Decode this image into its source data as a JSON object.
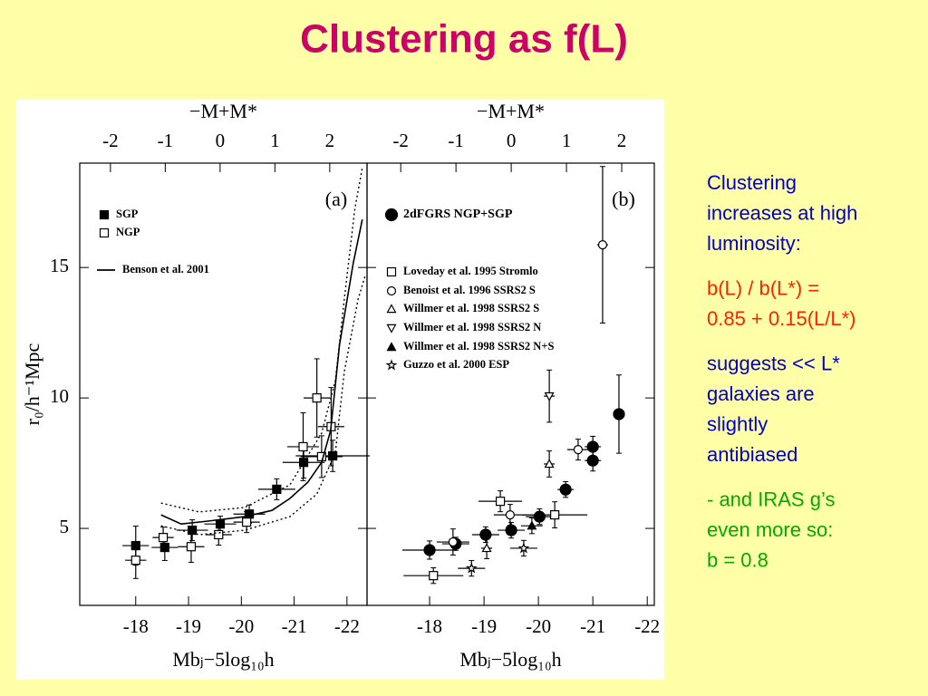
{
  "title": "Clustering as f(L)",
  "chart_data": [
    {
      "type": "scatter",
      "panel_label": "(a)",
      "xlabel": "Mbⱼ−5log₁₀h",
      "ylabel": "r₀/h⁻¹Mpc",
      "x2label": "−M+M*",
      "xlim": [
        -16.94,
        -22.38
      ],
      "xticks": [
        -18,
        -19,
        -20,
        -21,
        -22
      ],
      "x2lim": [
        -2.56,
        2.68
      ],
      "x2ticks": [
        -2,
        -1,
        0,
        1,
        2
      ],
      "ylim": [
        2.05,
        19
      ],
      "yticks": [
        5,
        10,
        15
      ],
      "ytick_labels": true,
      "legend": "upper left",
      "series": [
        {
          "name": "SGP",
          "marker": "filled-square",
          "color": "#000000",
          "x": [
            -18.0,
            -18.55,
            -19.07,
            -19.6,
            -20.15,
            -20.67,
            -21.18,
            -21.73
          ],
          "values": [
            4.34,
            4.27,
            4.93,
            5.17,
            5.55,
            6.5,
            7.53,
            7.78
          ],
          "errors": [
            0.75,
            0.5,
            0.4,
            0.3,
            0.35,
            0.4,
            0.6,
            0.6
          ],
          "xerrors": [
            0.25,
            0.25,
            0.3,
            0.3,
            0.3,
            0.35,
            0.4,
            0.7
          ]
        },
        {
          "name": "NGP",
          "marker": "open-square",
          "color": "#000000",
          "x": [
            -18.0,
            -18.52,
            -19.05,
            -19.57,
            -20.1,
            -21.17,
            -21.43,
            -21.7,
            -21.52
          ],
          "values": [
            3.78,
            4.65,
            4.3,
            4.76,
            5.24,
            8.13,
            10.0,
            8.9,
            7.75
          ],
          "errors": [
            0.7,
            0.4,
            0.6,
            0.4,
            0.4,
            1.3,
            1.5,
            1.5,
            0.8
          ],
          "xerrors": [
            0.2,
            0.2,
            0.25,
            0.25,
            0.25,
            0.3,
            0.25,
            0.25,
            0.4
          ]
        },
        {
          "name": "Benson et al. 2001",
          "style": "solid",
          "color": "#000000",
          "x": [
            -18.48,
            -18.86,
            -19.37,
            -20.06,
            -20.58,
            -20.92,
            -21.26,
            -21.52,
            -21.69,
            -21.86,
            -22.12,
            -22.29
          ],
          "values": [
            5.52,
            5.17,
            5.28,
            5.45,
            5.69,
            6.15,
            6.77,
            7.53,
            8.75,
            12.05,
            15.17,
            16.84
          ]
        },
        {
          "style": "dotted",
          "color": "#000000",
          "x": [
            -18.48,
            -19.2,
            -20.06,
            -20.92,
            -21.52,
            -21.78,
            -21.95,
            -22.15,
            -22.29
          ],
          "values": [
            5.97,
            5.63,
            5.8,
            6.67,
            8.65,
            10.66,
            13.78,
            17.26,
            18.82
          ]
        },
        {
          "style": "dotted",
          "color": "#000000",
          "x": [
            -18.48,
            -19.2,
            -20.06,
            -20.92,
            -21.43,
            -21.78,
            -21.95,
            -22.21,
            -22.34
          ],
          "values": [
            5.1,
            4.76,
            4.93,
            5.45,
            6.32,
            7.88,
            11.0,
            13.78,
            14.65
          ]
        }
      ]
    },
    {
      "type": "scatter",
      "panel_label": "(b)",
      "xlabel": "Mbⱼ−5log₁₀h",
      "x2label": "−M+M*",
      "xlim": [
        -16.85,
        -22.13
      ],
      "xticks": [
        -18,
        -19,
        -20,
        -21,
        -22
      ],
      "x2lim": [
        -2.61,
        2.59
      ],
      "x2ticks": [
        -2,
        -1,
        0,
        1,
        2
      ],
      "ylim": [
        2.05,
        19
      ],
      "yticks": [
        5,
        10,
        15
      ],
      "ytick_labels": false,
      "legend": "upper left",
      "series": [
        {
          "name": "2dFGRS NGP+SGP",
          "marker": "filled-circle",
          "color": "#000000",
          "x": [
            -18.0,
            -18.48,
            -19.03,
            -19.5,
            -20.02,
            -20.5,
            -21.0,
            -21.0,
            -21.48
          ],
          "values": [
            4.17,
            4.41,
            4.76,
            4.93,
            5.45,
            6.49,
            7.6,
            8.13,
            9.38
          ],
          "errors": [
            0.35,
            0.25,
            0.3,
            0.3,
            0.3,
            0.3,
            0.4,
            0.4,
            1.5
          ],
          "xerrors": [
            0.5,
            0.25,
            0.25,
            0.25,
            0.25,
            0.15,
            0.15,
            0.15,
            0.1
          ]
        },
        {
          "name": "Loveday et al. 1995 Stromlo",
          "marker": "open-square",
          "color": "#000000",
          "x": [
            -18.07,
            -19.3,
            -20.3
          ],
          "values": [
            3.19,
            6.04,
            5.52
          ],
          "errors": [
            0.3,
            0.4,
            0.5
          ],
          "xerrors": [
            0.55,
            0.4,
            0.6
          ]
        },
        {
          "name": "Benoist et al. 1996 SSRS2 S",
          "marker": "open-circle",
          "color": "#000000",
          "x": [
            -18.43,
            -19.48,
            -20.73,
            -21.18
          ],
          "values": [
            4.48,
            5.52,
            8.02,
            15.87
          ],
          "errors": [
            0.5,
            0.4,
            0.4,
            3.0
          ],
          "xerrors": [
            0.3,
            0.3,
            0.2,
            0.1
          ]
        },
        {
          "name": "Willmer et al. 1998 SSRS2 S",
          "marker": "open-triangle-up",
          "color": "#000000",
          "x": [
            -19.05,
            -20.2
          ],
          "values": [
            4.24,
            7.47
          ],
          "errors": [
            0.4,
            0.5
          ],
          "xerrors": [
            0.1,
            0.1
          ]
        },
        {
          "name": "Willmer et al. 1998 SSRS2 N",
          "marker": "open-triangle-down",
          "color": "#000000",
          "x": [
            -20.2
          ],
          "values": [
            10.07
          ],
          "errors": [
            1.0
          ],
          "xerrors": [
            0.1
          ]
        },
        {
          "name": "Willmer et al. 1998 SSRS2 N+S",
          "marker": "filled-triangle-up",
          "color": "#000000",
          "x": [
            -19.88
          ],
          "values": [
            5.1
          ],
          "errors": [
            0.3
          ],
          "xerrors": [
            0.2
          ]
        },
        {
          "name": "Guzzo et al. 2000 ESP",
          "marker": "open-star",
          "color": "#000000",
          "x": [
            -18.77,
            -19.73
          ],
          "values": [
            3.47,
            4.24
          ],
          "errors": [
            0.3,
            0.3
          ],
          "xerrors": [
            0.25,
            0.25
          ]
        }
      ]
    }
  ],
  "notes": [
    {
      "color": "#0000cc",
      "lines": [
        "Clustering",
        "increases at high",
        "luminosity:"
      ]
    },
    {
      "color": "#ff2200",
      "lines": [
        "b(L) / b(L*)  =",
        "0.85 + 0.15(L/L*)"
      ]
    },
    {
      "color": "#0000cc",
      "lines": [
        "suggests << L*",
        "galaxies are",
        "slightly",
        "antibiased"
      ]
    },
    {
      "color": "#00aa00",
      "lines": [
        "- and IRAS g’s",
        "even more so:",
        "b = 0.8"
      ]
    }
  ]
}
